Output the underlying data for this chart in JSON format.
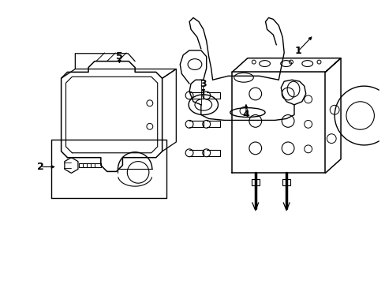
{
  "background_color": "#ffffff",
  "line_color": "#000000",
  "line_width": 1.0,
  "figsize": [
    4.89,
    3.6
  ],
  "dpi": 100
}
